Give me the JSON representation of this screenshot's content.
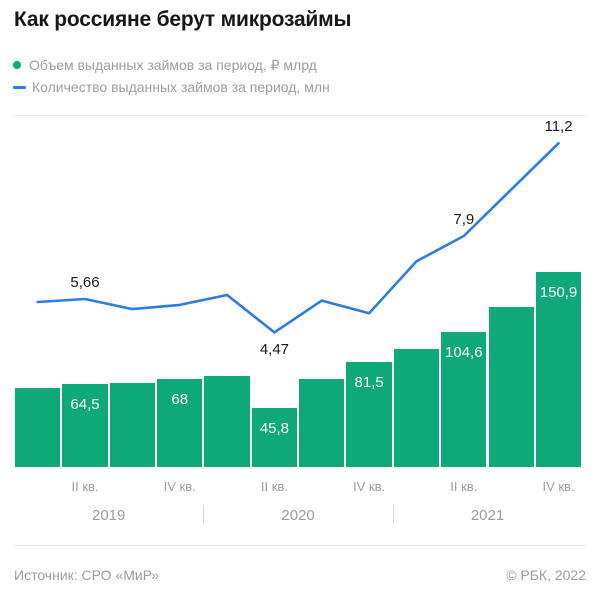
{
  "title": "Как россияне берут микрозаймы",
  "legend": {
    "position": "top-left",
    "items": [
      {
        "label": "Объем выданных займов за период, ₽ млрд",
        "marker": "dot",
        "color": "#0fa878"
      },
      {
        "label": "Количество выданных займов за период, млн",
        "marker": "dash",
        "color": "#2d7ce1"
      }
    ]
  },
  "footer": {
    "source": "Источник: СРО «МиР»",
    "copyright": "© РБК, 2022"
  },
  "colors": {
    "bar_green": "#0fa878",
    "line_blue": "#2d7ce1",
    "title_text": "#161616",
    "muted_text": "#9d9d9d",
    "bar_value_text": "#ffffff",
    "line_value_text": "#1a1a1a",
    "divider": "#e7e7e7"
  },
  "chart_data": {
    "type": "bar",
    "subtype": "bar+line combo",
    "grid": false,
    "legend_position": "top-left",
    "x_tick_labels": [
      "",
      "II кв.",
      "",
      "IV кв.",
      "",
      "II кв.",
      "",
      "IV кв.",
      "",
      "II кв.",
      "",
      "IV кв."
    ],
    "year_groups": [
      {
        "label": "2019",
        "bars": 4
      },
      {
        "label": "2020",
        "bars": 4
      },
      {
        "label": "2021",
        "bars": 4
      }
    ],
    "series": [
      {
        "name": "Объем выданных займов за период, ₽ млрд",
        "type": "bar",
        "color": "#0fa878",
        "values": [
          61,
          64.5,
          65,
          68,
          70.5,
          45.8,
          68,
          81.5,
          91.5,
          104.6,
          124,
          150.9
        ],
        "value_labels": [
          "",
          "64,5",
          "",
          "68",
          "",
          "45,8",
          "",
          "81,5",
          "",
          "104,6",
          "",
          "150,9"
        ],
        "axis_range": [
          0,
          160
        ],
        "axis_visible": false
      },
      {
        "name": "Количество выданных займов за период, млн",
        "type": "line",
        "color": "#2d7ce1",
        "values": [
          5.55,
          5.66,
          5.3,
          5.45,
          5.8,
          4.47,
          5.6,
          5.15,
          7.0,
          7.9,
          9.55,
          11.2
        ],
        "value_labels": [
          "",
          "5,66",
          "",
          "",
          "",
          "4,47",
          "",
          "",
          "",
          "7,9",
          "",
          "11,2"
        ],
        "label_sides": [
          "",
          "above",
          "",
          "",
          "",
          "below",
          "",
          "",
          "",
          "above",
          "",
          "above"
        ],
        "axis_range": [
          0,
          12
        ],
        "axis_visible": false
      }
    ]
  }
}
